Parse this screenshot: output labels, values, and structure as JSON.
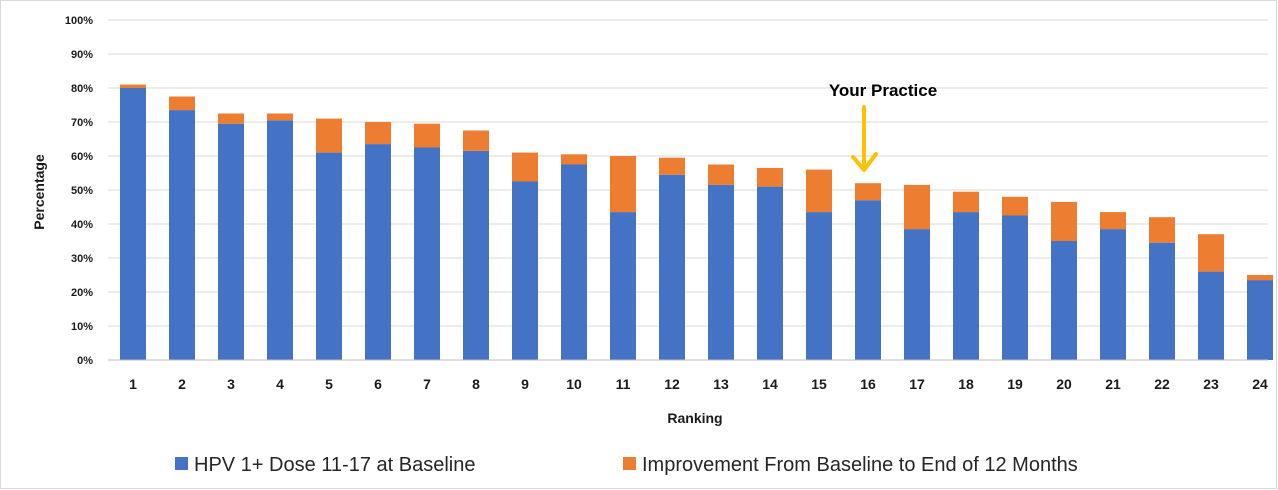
{
  "chart_data": {
    "type": "bar",
    "stacked": true,
    "title": "",
    "xlabel": "Ranking",
    "ylabel": "Percentage",
    "ylim": [
      0,
      100
    ],
    "y_ticks": [
      "0%",
      "10%",
      "20%",
      "30%",
      "40%",
      "50%",
      "60%",
      "70%",
      "80%",
      "90%",
      "100%"
    ],
    "categories": [
      "1",
      "2",
      "3",
      "4",
      "5",
      "6",
      "7",
      "8",
      "9",
      "10",
      "11",
      "12",
      "13",
      "14",
      "15",
      "16",
      "17",
      "18",
      "19",
      "20",
      "21",
      "22",
      "23",
      "24"
    ],
    "series": [
      {
        "name": "HPV 1+ Dose 11-17 at Baseline",
        "color": "#4472c4",
        "values": [
          80,
          73.5,
          69.5,
          70.5,
          61,
          63.5,
          62.5,
          61.5,
          52.5,
          57.5,
          43.5,
          54.5,
          51.5,
          51,
          43.5,
          47,
          38.5,
          43.5,
          42.5,
          35,
          38.5,
          34.5,
          26,
          23.5
        ]
      },
      {
        "name": "Improvement From Baseline to End of 12 Months",
        "color": "#ed7d31",
        "values": [
          1,
          4,
          3,
          2,
          10,
          6.5,
          7,
          6,
          8.5,
          3,
          16.5,
          5,
          6,
          5.5,
          12.5,
          5,
          13,
          6,
          5.5,
          11.5,
          5,
          7.5,
          11,
          1.5
        ]
      }
    ],
    "grid": true,
    "legend_position": "bottom",
    "annotation": {
      "text": "Your Practice",
      "target_category": "16",
      "arrow_color": "#ffc000"
    }
  }
}
